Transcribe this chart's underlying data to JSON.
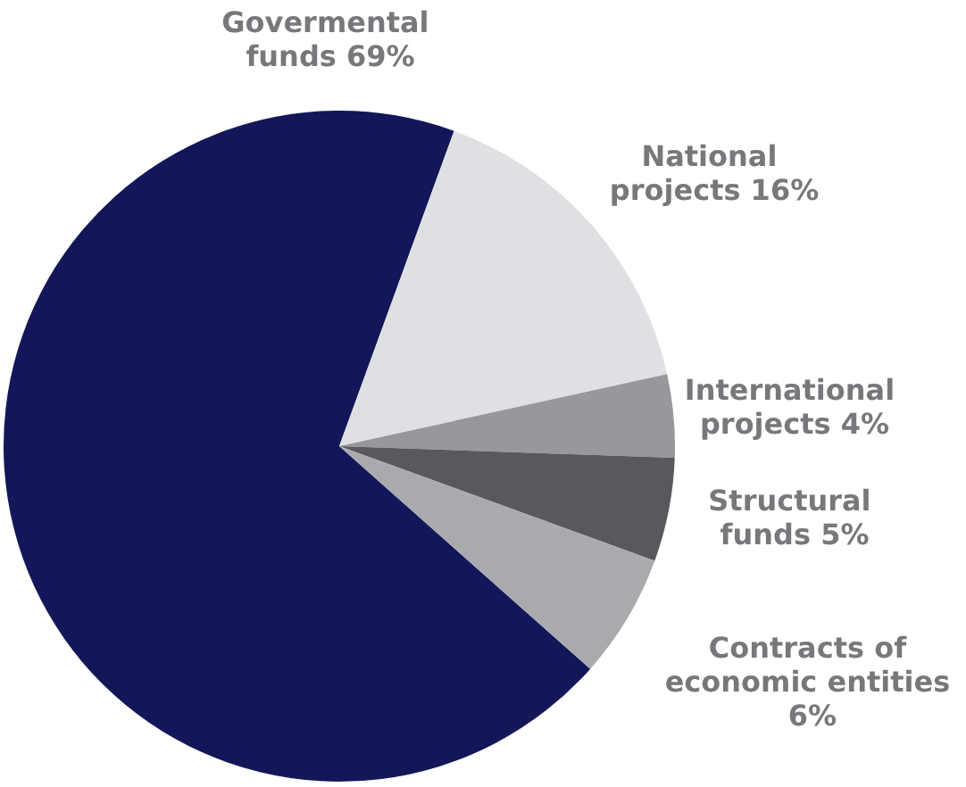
{
  "chart_data": {
    "type": "pie",
    "categories": [
      "Govermental funds",
      "National projects",
      "International projects",
      "Structural funds",
      "Contracts of economic entities"
    ],
    "values": [
      69,
      16,
      4,
      5,
      6
    ],
    "colors": [
      "#131759",
      "#dfe0e3",
      "#97989c",
      "#58595c",
      "#a9aaae"
    ],
    "value_labels": [
      "69%",
      "16%",
      "4%",
      "5%",
      "6%"
    ]
  }
}
